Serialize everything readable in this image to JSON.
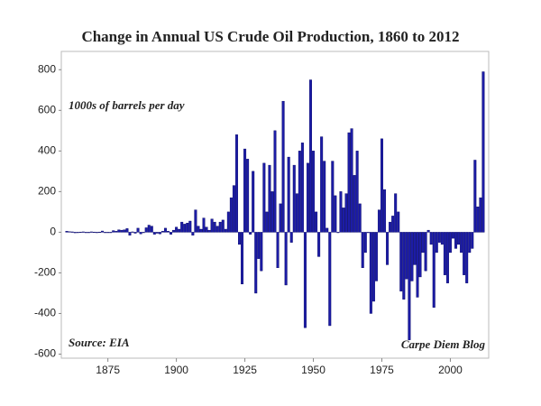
{
  "chart_data": {
    "type": "bar",
    "title": "Change in Annual US Crude Oil Production, 1860 to 2012",
    "annotations": [
      "1000s of barrels per day",
      "Source: EIA",
      "Carpe Diem Blog"
    ],
    "x": [
      1860,
      1861,
      1862,
      1863,
      1864,
      1865,
      1866,
      1867,
      1868,
      1869,
      1870,
      1871,
      1872,
      1873,
      1874,
      1875,
      1876,
      1877,
      1878,
      1879,
      1880,
      1881,
      1882,
      1883,
      1884,
      1885,
      1886,
      1887,
      1888,
      1889,
      1890,
      1891,
      1892,
      1893,
      1894,
      1895,
      1896,
      1897,
      1898,
      1899,
      1900,
      1901,
      1902,
      1903,
      1904,
      1905,
      1906,
      1907,
      1908,
      1909,
      1910,
      1911,
      1912,
      1913,
      1914,
      1915,
      1916,
      1917,
      1918,
      1919,
      1920,
      1921,
      1922,
      1923,
      1924,
      1925,
      1926,
      1927,
      1928,
      1929,
      1930,
      1931,
      1932,
      1933,
      1934,
      1935,
      1936,
      1937,
      1938,
      1939,
      1940,
      1941,
      1942,
      1943,
      1944,
      1945,
      1946,
      1947,
      1948,
      1949,
      1950,
      1951,
      1952,
      1953,
      1954,
      1955,
      1956,
      1957,
      1958,
      1959,
      1960,
      1961,
      1962,
      1963,
      1964,
      1965,
      1966,
      1967,
      1968,
      1969,
      1970,
      1971,
      1972,
      1973,
      1974,
      1975,
      1976,
      1977,
      1978,
      1979,
      1980,
      1981,
      1982,
      1983,
      1984,
      1985,
      1986,
      1987,
      1988,
      1989,
      1990,
      1991,
      1992,
      1993,
      1994,
      1995,
      1996,
      1997,
      1998,
      1999,
      2000,
      2001,
      2002,
      2003,
      2004,
      2005,
      2006,
      2007,
      2008,
      2009,
      2010,
      2011,
      2012
    ],
    "values": [
      5,
      3,
      2,
      -3,
      0,
      1,
      2,
      0,
      0,
      2,
      1,
      0,
      1,
      6,
      -2,
      0,
      0,
      8,
      5,
      12,
      10,
      12,
      18,
      -15,
      2,
      -5,
      20,
      -8,
      0,
      22,
      35,
      30,
      -10,
      -5,
      -8,
      5,
      20,
      5,
      -10,
      10,
      25,
      15,
      50,
      40,
      45,
      55,
      -15,
      110,
      30,
      15,
      70,
      25,
      10,
      65,
      50,
      30,
      50,
      60,
      15,
      100,
      170,
      230,
      480,
      -60,
      -255,
      410,
      360,
      -10,
      300,
      -300,
      -130,
      -190,
      340,
      100,
      330,
      200,
      500,
      -175,
      140,
      645,
      -260,
      370,
      -50,
      330,
      190,
      400,
      440,
      -470,
      340,
      750,
      400,
      100,
      -120,
      470,
      350,
      20,
      -460,
      350,
      180,
      0,
      200,
      120,
      190,
      490,
      510,
      280,
      400,
      140,
      -175,
      -100,
      0,
      -400,
      -340,
      -240,
      110,
      460,
      210,
      -160,
      50,
      80,
      190,
      100,
      -290,
      -330,
      -230,
      -530,
      -240,
      -160,
      -320,
      -220,
      -100,
      -190,
      10,
      -60,
      -370,
      -100,
      -50,
      -60,
      -210,
      -250,
      -100,
      -30,
      -80,
      -60,
      -100,
      -210,
      -250,
      -100,
      -80,
      355,
      125,
      170,
      790
    ],
    "color": "#1c1ca6",
    "xlim": [
      1858,
      2014
    ],
    "xticks": [
      1875,
      1900,
      1925,
      1950,
      1975,
      2000
    ],
    "ylim": [
      -620,
      890
    ],
    "yticks": [
      -600,
      -400,
      -200,
      0,
      200,
      400,
      600,
      800
    ]
  }
}
